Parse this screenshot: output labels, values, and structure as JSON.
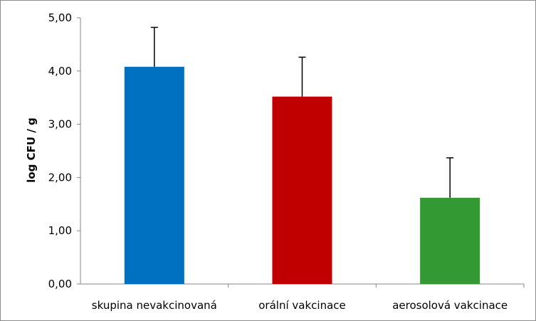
{
  "chart_data": {
    "type": "bar",
    "title": "",
    "xlabel": "",
    "ylabel": "log CFU / g",
    "categories": [
      "skupina nevakcinovaná",
      "orální vakcinace",
      "aerosolová vakcinace"
    ],
    "values": [
      4.08,
      3.52,
      1.62
    ],
    "error_upper": [
      4.82,
      4.26,
      2.37
    ],
    "colors": [
      "#0070C0",
      "#C00000",
      "#339933"
    ],
    "ylim": [
      0,
      5
    ],
    "yticks": [
      "0,00",
      "1,00",
      "2,00",
      "3,00",
      "4,00",
      "5,00"
    ],
    "grid": false,
    "legend": "none"
  }
}
